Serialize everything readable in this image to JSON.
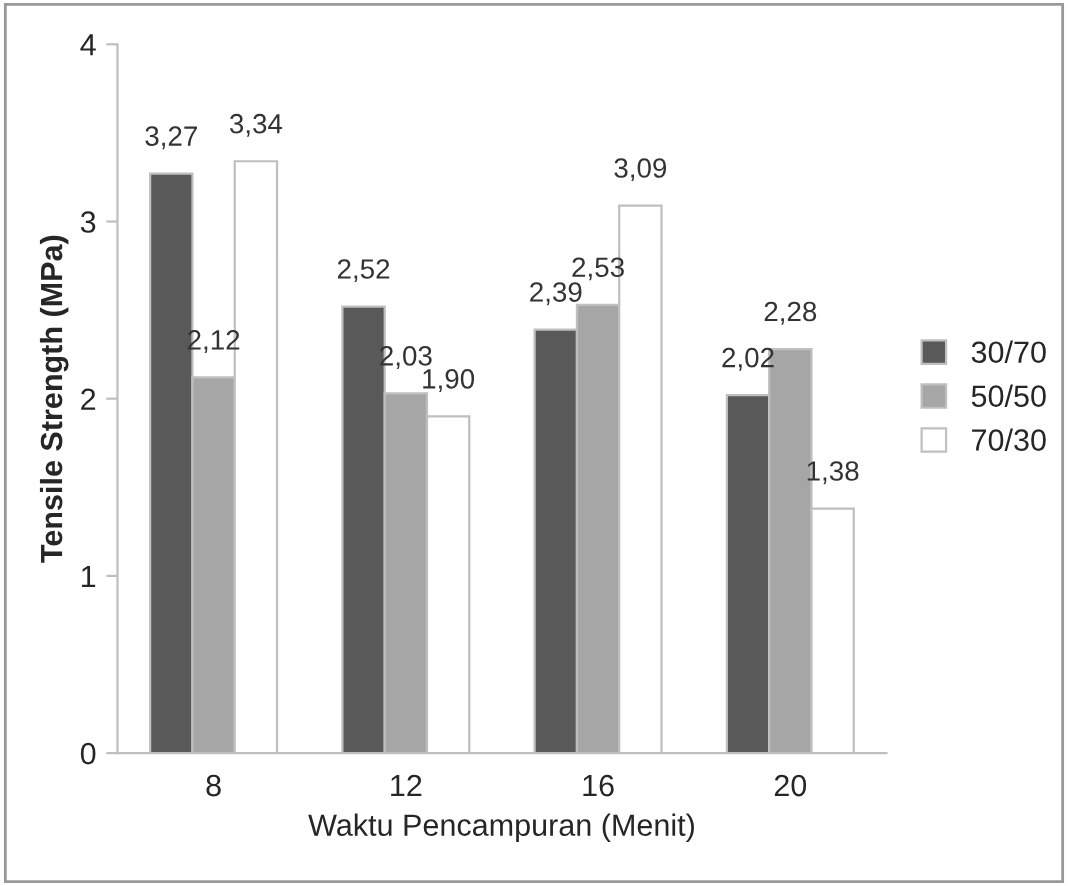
{
  "chart_data": {
    "type": "bar",
    "xlabel": "Waktu Pencampuran (Menit)",
    "ylabel": "Tensile Strength (MPa)",
    "categories": [
      "8",
      "12",
      "16",
      "20"
    ],
    "series": [
      {
        "name": "30/70",
        "color": "#595959",
        "values": [
          3.27,
          2.52,
          2.39,
          2.02
        ],
        "value_labels": [
          "3,27",
          "2,52",
          "2,39",
          "2,02"
        ]
      },
      {
        "name": "50/50",
        "color": "#a6a6a6",
        "values": [
          2.12,
          2.03,
          2.53,
          2.28
        ],
        "value_labels": [
          "2,12",
          "2,03",
          "2,53",
          "2,28"
        ]
      },
      {
        "name": "70/30",
        "color": "#ffffff",
        "values": [
          3.34,
          1.9,
          3.09,
          1.38
        ],
        "value_labels": [
          "3,34",
          "1,90",
          "3,09",
          "1,38"
        ]
      }
    ],
    "ylim": [
      0,
      4
    ],
    "yticks": [
      0,
      1,
      2,
      3,
      4
    ],
    "grid": false,
    "legend": "right"
  }
}
